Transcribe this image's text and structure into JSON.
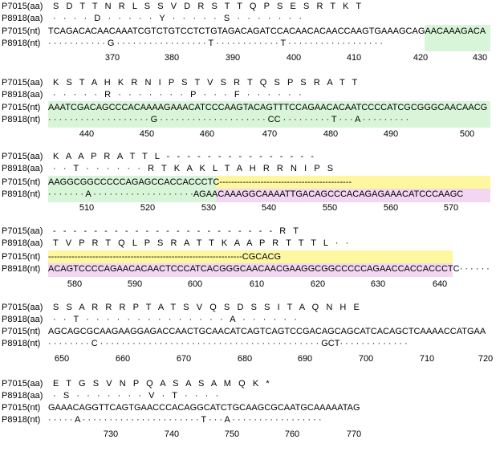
{
  "labels": {
    "aa1": "P7015(aa)",
    "aa2": "P8918(aa)",
    "nt1": "P7015(nt)",
    "nt2": "P8918(nt)"
  },
  "colors": {
    "green": "#d9f5d9",
    "yellow": "#fdf8a0",
    "pink": "#f3d7f2"
  },
  "blocks": [
    {
      "aa1": "S   D   T   T   N   R   L   S   S   V   D   R   S   T   T   Q   P   S   E   S   R   T   K   T",
      "aa2": "·   ·   ·   ·   D   ·   ·   ·   ·   ·   Y   ·   ·   ·   ·   ·   S   ·   ·   ·   ·   ·   ·   ·",
      "nt1": "TCAGACACAACAAATCGTCTGTCCTCTGTAGACAGATCCACAACACAACCAAGTGAAAGCAGAACAAAGACA",
      "nt2": "· · · · · · · · · · · G · · · · · · · · · · · · · · · · · T · · · · · · · · · · · · T · · · · · · · · · · · · · · · · · ·",
      "numbers": [
        "370",
        "380",
        "390",
        "400",
        "410",
        "420",
        "430"
      ]
    },
    {
      "aa1": "K   S   T   A   H   K   R   N   I   P   S   T   V   S   R   T   Q   S   P   S   R   A   T   T",
      "aa2": "·   ·   ·   ·   ·   R   ·   ·   ·   ·   ·   ·   ·   P   ·   ·   ·   F   ·   ·   ·   ·   ·   ·",
      "nt1": "AAATCGACAGCCCACAAAAGAAACATCCCAAGTACAGTTTCCAGAACACAATCCCCATCGCGGGCAACAACG",
      "nt2": "· · · · · · · · · · · · · · · · · · · G · · · · · · · · · · · · · · · · · · · · CC · · · · · · · · · T · · · A · · · · · · · · ·",
      "numbers": [
        "440",
        "450",
        "460",
        "470",
        "480",
        "490",
        "500"
      ]
    },
    {
      "aa1": "K   A   A   P   R   A   T   T   L   -   -   -   -   -   -   -   -   -   -   -   -   -   -   -",
      "aa2": "·   ·   T   ·   ·   ·   ·   ·   ·   R   T   K   A   K   L   T   A   H   R   R   N   I   P   S",
      "nt1": "AAGGCGGCCCCCAGAGCCACCACCCTC---------------------------------------------",
      "nt2": "· · · · · · · A · · · · · · · · · · · · · · · · · · ·AGAACAAAGGCAAAATTGACAGCCCACAGAGAAACATCCCAAGC",
      "numbers": [
        "510",
        "520",
        "530",
        "540",
        "550",
        "560",
        "570"
      ]
    },
    {
      "aa1": "-   -   -   -   -   -   -   -   -   -   -   -   -   -   -   -   -   -   -   -   -   -   R   T",
      "aa2": "T   V   P   R   T   Q   L   P   S   R   A   T   T   K   A   A   P   R   T   T   T   L   ·   ·",
      "nt1": "------------------------------------------------------------------CGCACG",
      "nt2": "ACAGTCCCCAGAACACAACTCCCATCACGGGCAACAACGAAGGCGGCCCCCAGAACCACCACCCTC· · · · · ·",
      "numbers": [
        "580",
        "590",
        "600",
        "610",
        "620",
        "630",
        "640"
      ]
    },
    {
      "aa1": "S   S   A   R   R   R   P   T   A   T   S   V   Q   S   D   S   S   I   T   A   Q   N   H   E",
      "aa2": "·   ·   T   ·   ·   ·   ·   ·   ·   ·   ·   ·   ·   ·   ·   ·   ·   A   ·   ·   ·   ·   ·   ·",
      "nt1": "AGCAGCGCAAGAAGGAGACCAACTGCAACATCAGTCAGTCCGACAGCAGCATCACAGCTCAAAACCATGAA",
      "nt2": "· · · · · · · · C · · · · · · · · · · · · · · · · · · · · · · · · · · · · · · · · · · · · · · · · · GCT· · · · · · · · · · · · ·",
      "numbers": [
        "650",
        "660",
        "670",
        "680",
        "690",
        "700",
        "710",
        "720"
      ]
    },
    {
      "aa1": "E   T   G   S   V   N   P   Q   A   S   A   S   A   M   Q   K   *",
      "aa2": "·   S   ·   ·   ·   ·   ·   ·   ·   V   ·   T   ·   ·   ·   ·",
      "nt1": "GAAACAGGTTCAGTGAACCCACAGGCATCTGCAAGCGCAATGCAAAAATAG",
      "nt2": "· · · · · A · · · · · · · · · · · · · · · · · · · · · · T · · · A · · · · · · · · · · · · · · · · ·",
      "numbers": [
        "730",
        "740",
        "750",
        "760",
        "770"
      ]
    }
  ]
}
